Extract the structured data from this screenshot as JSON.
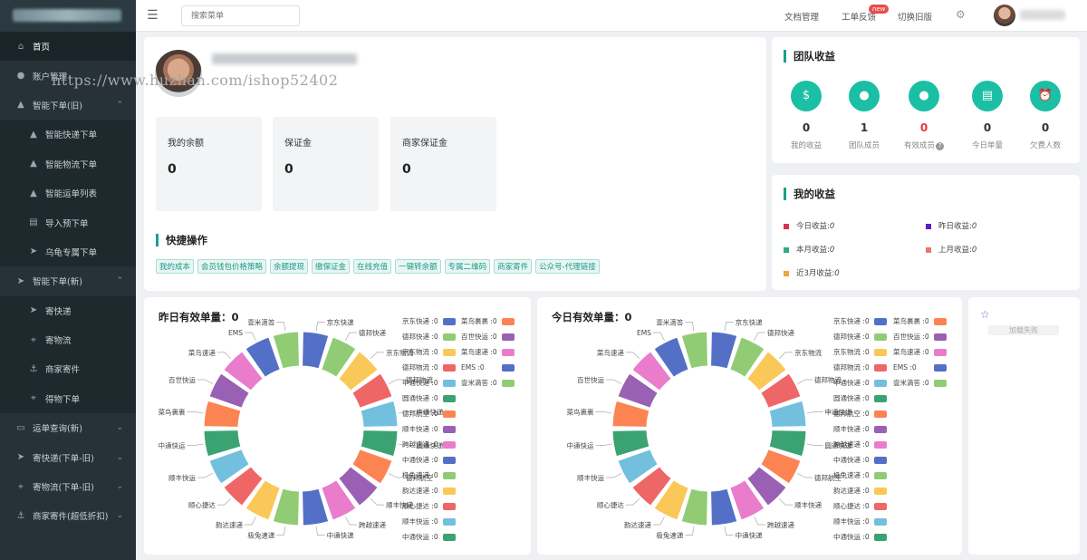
{
  "sidebar": {
    "items": [
      {
        "label": "首页",
        "icon": "home-icon",
        "level": 0,
        "active": true
      },
      {
        "label": "账户管理",
        "icon": "user-icon",
        "level": 0
      },
      {
        "label": "智能下单(旧)",
        "icon": "bag-icon",
        "level": 0,
        "expanded": true
      },
      {
        "label": "智能快递下单",
        "icon": "bag-icon",
        "level": 1
      },
      {
        "label": "智能物流下单",
        "icon": "bag-icon",
        "level": 1
      },
      {
        "label": "智能运单列表",
        "icon": "bag-icon",
        "level": 1
      },
      {
        "label": "导入预下单",
        "icon": "list-icon",
        "level": 1
      },
      {
        "label": "乌龟专属下单",
        "icon": "send-icon",
        "level": 1
      },
      {
        "label": "智能下单(新)",
        "icon": "send-icon",
        "level": 0,
        "expanded": true
      },
      {
        "label": "寄快递",
        "icon": "send-icon",
        "level": 1
      },
      {
        "label": "寄物流",
        "icon": "pin-icon",
        "level": 1
      },
      {
        "label": "商家寄件",
        "icon": "anchor-icon",
        "level": 1
      },
      {
        "label": "得物下单",
        "icon": "pin-icon",
        "level": 1
      },
      {
        "label": "运单查询(新)",
        "icon": "chat-icon",
        "level": 0,
        "collapsed": true
      },
      {
        "label": "寄快递(下单-旧)",
        "icon": "send-icon",
        "level": 0,
        "collapsed": true
      },
      {
        "label": "寄物流(下单-旧)",
        "icon": "pin-icon",
        "level": 0,
        "collapsed": true
      },
      {
        "label": "商家寄件(超低折扣)",
        "icon": "anchor-icon",
        "level": 0,
        "collapsed": true
      }
    ]
  },
  "header": {
    "search_placeholder": "搜索菜单",
    "links": {
      "docs": "文档管理",
      "feedback": "工单反馈",
      "old": "切换旧版"
    },
    "new_badge": "new"
  },
  "profile": {
    "watermark": "https://www.huzhan.com/ishop52402",
    "balances": [
      {
        "label": "我的余额",
        "value": "0"
      },
      {
        "label": "保证金",
        "value": "0"
      },
      {
        "label": "商家保证金",
        "value": "0"
      }
    ],
    "quick_title": "快捷操作",
    "quick_actions": [
      "我的成本",
      "会员钱包价格策略",
      "余额提现",
      "缴保证金",
      "在线充值",
      "一键转余额",
      "专属二维码",
      "商家寄件",
      "公众号-代理链接"
    ]
  },
  "team": {
    "title": "团队收益",
    "stats": [
      {
        "label": "我的收益",
        "value": "0",
        "icon": "money-bag-icon"
      },
      {
        "label": "团队成员",
        "value": "1",
        "icon": "user-icon"
      },
      {
        "label": "有效成员",
        "value": "0",
        "icon": "user-icon",
        "highlight": true,
        "help": "?"
      },
      {
        "label": "今日单量",
        "value": "0",
        "icon": "document-icon"
      },
      {
        "label": "欠费人数",
        "value": "0",
        "icon": "alarm-icon"
      }
    ]
  },
  "income": {
    "title": "我的收益",
    "items": [
      {
        "label": "今日收益:",
        "value": "0",
        "color": "#d8344f"
      },
      {
        "label": "昨日收益:",
        "value": "0",
        "color": "#5b1fc4"
      },
      {
        "label": "本月收益:",
        "value": "0",
        "color": "#2bab8c"
      },
      {
        "label": "上月收益:",
        "value": "0",
        "color": "#e8776b"
      },
      {
        "label": "近3月收益:",
        "value": "0",
        "color": "#e7a93b"
      }
    ]
  },
  "charts": {
    "yesterday_title": "昨日有效单量：0",
    "today_title": "今日有效单量：0"
  },
  "chart_data": [
    {
      "type": "pie",
      "title": "昨日有效单量：0",
      "categories": [
        "京东快递",
        "德邦快递",
        "京东物流",
        "德邦物流",
        "申通快递",
        "圆通快递",
        "德邦航空",
        "顺丰快递",
        "跨越速递",
        "中通快递",
        "极兔速递",
        "韵达速递",
        "顺心捷达",
        "顺丰快运",
        "中通快运",
        "菜鸟裹裹",
        "百世快运",
        "菜鸟速递",
        "EMS",
        "壹米滴答"
      ],
      "values": [
        0,
        0,
        0,
        0,
        0,
        0,
        0,
        0,
        0,
        0,
        0,
        0,
        0,
        0,
        0,
        0,
        0,
        0,
        0,
        0
      ],
      "colors": [
        "#5470c6",
        "#91cc75",
        "#fac858",
        "#ee6666",
        "#73c0de",
        "#3ba272",
        "#fc8452",
        "#9a60b4",
        "#ea7ccc",
        "#5470c6",
        "#91cc75",
        "#fac858",
        "#ee6666",
        "#73c0de",
        "#3ba272",
        "#fc8452",
        "#9a60b4",
        "#ea7ccc",
        "#5470c6",
        "#91cc75"
      ],
      "legend_col1": [
        {
          "label": "京东快递 :0",
          "color": "#5470c6"
        },
        {
          "label": "德邦快递 :0",
          "color": "#91cc75"
        },
        {
          "label": "京东物流 :0",
          "color": "#fac858"
        },
        {
          "label": "德邦物流 :0",
          "color": "#ee6666"
        },
        {
          "label": "申通快递 :0",
          "color": "#73c0de"
        },
        {
          "label": "圆通快递 :0",
          "color": "#3ba272"
        },
        {
          "label": "德邦航空 :0",
          "color": "#fc8452"
        },
        {
          "label": "顺丰快递 :0",
          "color": "#9a60b4"
        },
        {
          "label": "跨越速递 :0",
          "color": "#ea7ccc"
        },
        {
          "label": "中通快递 :0",
          "color": "#5470c6"
        },
        {
          "label": "极兔速递 :0",
          "color": "#91cc75"
        },
        {
          "label": "韵达速递 :0",
          "color": "#fac858"
        },
        {
          "label": "顺心捷达 :0",
          "color": "#ee6666"
        },
        {
          "label": "顺丰快运 :0",
          "color": "#73c0de"
        },
        {
          "label": "中通快运 :0",
          "color": "#3ba272"
        }
      ],
      "legend_col2": [
        {
          "label": "菜鸟裹裹 :0",
          "color": "#fc8452"
        },
        {
          "label": "百世快运 :0",
          "color": "#9a60b4"
        },
        {
          "label": "菜鸟速递 :0",
          "color": "#ea7ccc"
        },
        {
          "label": "EMS :0",
          "color": "#5470c6"
        },
        {
          "label": "壹米滴答 :0",
          "color": "#91cc75"
        }
      ],
      "legend": "right"
    },
    {
      "type": "pie",
      "title": "今日有效单量：0",
      "categories": [
        "京东快递",
        "德邦快递",
        "京东物流",
        "德邦物流",
        "申通快递",
        "圆通快递",
        "德邦航空",
        "顺丰快递",
        "跨越速递",
        "中通快递",
        "极兔速递",
        "韵达速递",
        "顺心捷达",
        "顺丰快运",
        "中通快运",
        "菜鸟裹裹",
        "百世快运",
        "菜鸟速递",
        "EMS",
        "壹米滴答"
      ],
      "values": [
        0,
        0,
        0,
        0,
        0,
        0,
        0,
        0,
        0,
        0,
        0,
        0,
        0,
        0,
        0,
        0,
        0,
        0,
        0,
        0
      ],
      "colors": [
        "#5470c6",
        "#91cc75",
        "#fac858",
        "#ee6666",
        "#73c0de",
        "#3ba272",
        "#fc8452",
        "#9a60b4",
        "#ea7ccc",
        "#5470c6",
        "#91cc75",
        "#fac858",
        "#ee6666",
        "#73c0de",
        "#3ba272",
        "#fc8452",
        "#9a60b4",
        "#ea7ccc",
        "#5470c6",
        "#91cc75"
      ],
      "legend_col1": [
        {
          "label": "京东快递 :0",
          "color": "#5470c6"
        },
        {
          "label": "德邦快递 :0",
          "color": "#91cc75"
        },
        {
          "label": "京东物流 :0",
          "color": "#fac858"
        },
        {
          "label": "德邦物流 :0",
          "color": "#ee6666"
        },
        {
          "label": "申通快递 :0",
          "color": "#73c0de"
        },
        {
          "label": "圆通快递 :0",
          "color": "#3ba272"
        },
        {
          "label": "德邦航空 :0",
          "color": "#fc8452"
        },
        {
          "label": "顺丰快递 :0",
          "color": "#9a60b4"
        },
        {
          "label": "跨越速递 :0",
          "color": "#ea7ccc"
        },
        {
          "label": "中通快递 :0",
          "color": "#5470c6"
        },
        {
          "label": "极兔速递 :0",
          "color": "#91cc75"
        },
        {
          "label": "韵达速递 :0",
          "color": "#fac858"
        },
        {
          "label": "顺心捷达 :0",
          "color": "#ee6666"
        },
        {
          "label": "顺丰快运 :0",
          "color": "#73c0de"
        },
        {
          "label": "中通快运 :0",
          "color": "#3ba272"
        }
      ],
      "legend_col2": [
        {
          "label": "菜鸟裹裹 :0",
          "color": "#fc8452"
        },
        {
          "label": "百世快运 :0",
          "color": "#9a60b4"
        },
        {
          "label": "菜鸟速递 :0",
          "color": "#ea7ccc"
        },
        {
          "label": "EMS :0",
          "color": "#5470c6"
        },
        {
          "label": "壹米滴答 :0",
          "color": "#91cc75"
        }
      ],
      "legend": "right"
    }
  ],
  "misc": {
    "icon": "star-icon",
    "fail_text": "加载失败"
  }
}
